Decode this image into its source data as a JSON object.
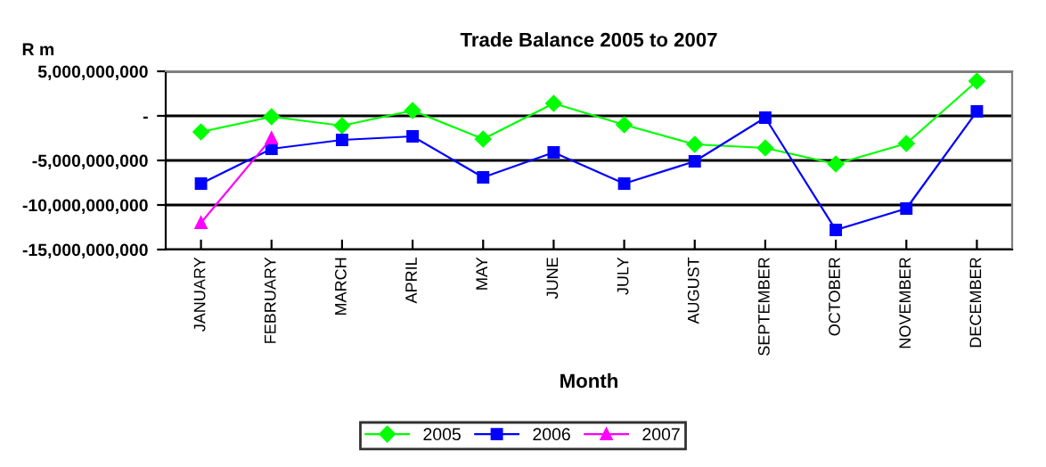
{
  "chart_data": {
    "type": "line",
    "title": "Trade Balance 2005 to 2007",
    "xlabel": "Month",
    "ylabel": "R m",
    "categories": [
      "JANUARY",
      "FEBRUARY",
      "MARCH",
      "APRIL",
      "MAY",
      "JUNE",
      "JULY",
      "AUGUST",
      "SEPTEMBER",
      "OCTOBER",
      "NOVEMBER",
      "DECEMBER"
    ],
    "series": [
      {
        "name": "2005",
        "color": "#00ff00",
        "marker": "diamond",
        "values": [
          -1800000000.0,
          -100000000.0,
          -1100000000.0,
          600000000.0,
          -2600000000.0,
          1400000000.0,
          -1000000000.0,
          -3200000000.0,
          -3600000000.0,
          -5400000000.0,
          -3100000000.0,
          3900000000.0
        ]
      },
      {
        "name": "2006",
        "color": "#0000ff",
        "marker": "square",
        "values": [
          -7600000000.0,
          -3700000000.0,
          -2700000000.0,
          -2300000000.0,
          -6900000000.0,
          -4100000000.0,
          -7600000000.0,
          -5100000000.0,
          -200000000.0,
          -12800000000.0,
          -10400000000.0,
          500000000.0
        ]
      },
      {
        "name": "2007",
        "color": "#ff00ff",
        "marker": "triangle",
        "values": [
          -12000000000.0,
          -2500000000.0,
          null,
          null,
          null,
          null,
          null,
          null,
          null,
          null,
          null,
          null
        ]
      }
    ],
    "ylim": [
      -15000000000,
      5000000000
    ],
    "yticks": [
      {
        "value": 5000000000,
        "label": "5,000,000,000"
      },
      {
        "value": 0,
        "label": "-"
      },
      {
        "value": -5000000000,
        "label": "-5,000,000,000"
      },
      {
        "value": -10000000000,
        "label": "-10,000,000,000"
      },
      {
        "value": -15000000000,
        "label": "-15,000,000,000"
      }
    ],
    "grid": "y",
    "legend": "bottom",
    "line_style": "solid"
  }
}
